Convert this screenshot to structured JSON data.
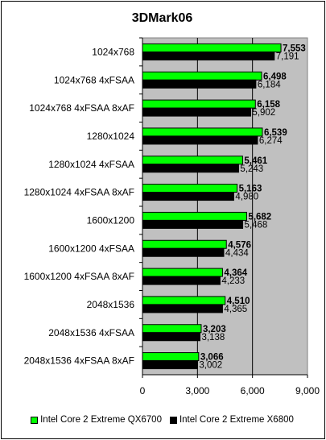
{
  "chart_data": {
    "type": "bar",
    "orientation": "horizontal",
    "title": "3DMark06",
    "xlabel": "",
    "ylabel": "",
    "xlim": [
      0,
      9000
    ],
    "xticks": [
      "0",
      "3,000",
      "6,000",
      "9,000"
    ],
    "grid": true,
    "legend_position": "bottom",
    "categories": [
      "1024x768",
      "1024x768 4xFSAA",
      "1024x768 4xFSAA 8xAF",
      "1280x1024",
      "1280x1024 4xFSAA",
      "1280x1024 4xFSAA 8xAF",
      "1600x1200",
      "1600x1200 4xFSAA",
      "1600x1200 4xFSAA 8xAF",
      "2048x1536",
      "2048x1536 4xFSAA",
      "2048x1536 4xFSAA 8xAF"
    ],
    "series": [
      {
        "name": "Intel Core 2 Extreme QX6700",
        "color": "#00ff00",
        "values": [
          7553,
          6498,
          6158,
          6539,
          5461,
          5163,
          5682,
          4576,
          4364,
          4510,
          3203,
          3066
        ],
        "labels": [
          "7,553",
          "6,498",
          "6,158",
          "6,539",
          "5,461",
          "5,163",
          "5,682",
          "4,576",
          "4,364",
          "4,510",
          "3,203",
          "3,066"
        ]
      },
      {
        "name": "Intel Core 2 Extreme X6800",
        "color": "#000000",
        "values": [
          7191,
          6184,
          5902,
          6274,
          5243,
          4980,
          5468,
          4434,
          4233,
          4365,
          3138,
          3002
        ],
        "labels": [
          "7,191",
          "6,184",
          "5,902",
          "6,274",
          "5,243",
          "4,980",
          "5,468",
          "4,434",
          "4,233",
          "4,365",
          "3,138",
          "3,002"
        ]
      }
    ],
    "plot_background": "#c0c0c0"
  }
}
